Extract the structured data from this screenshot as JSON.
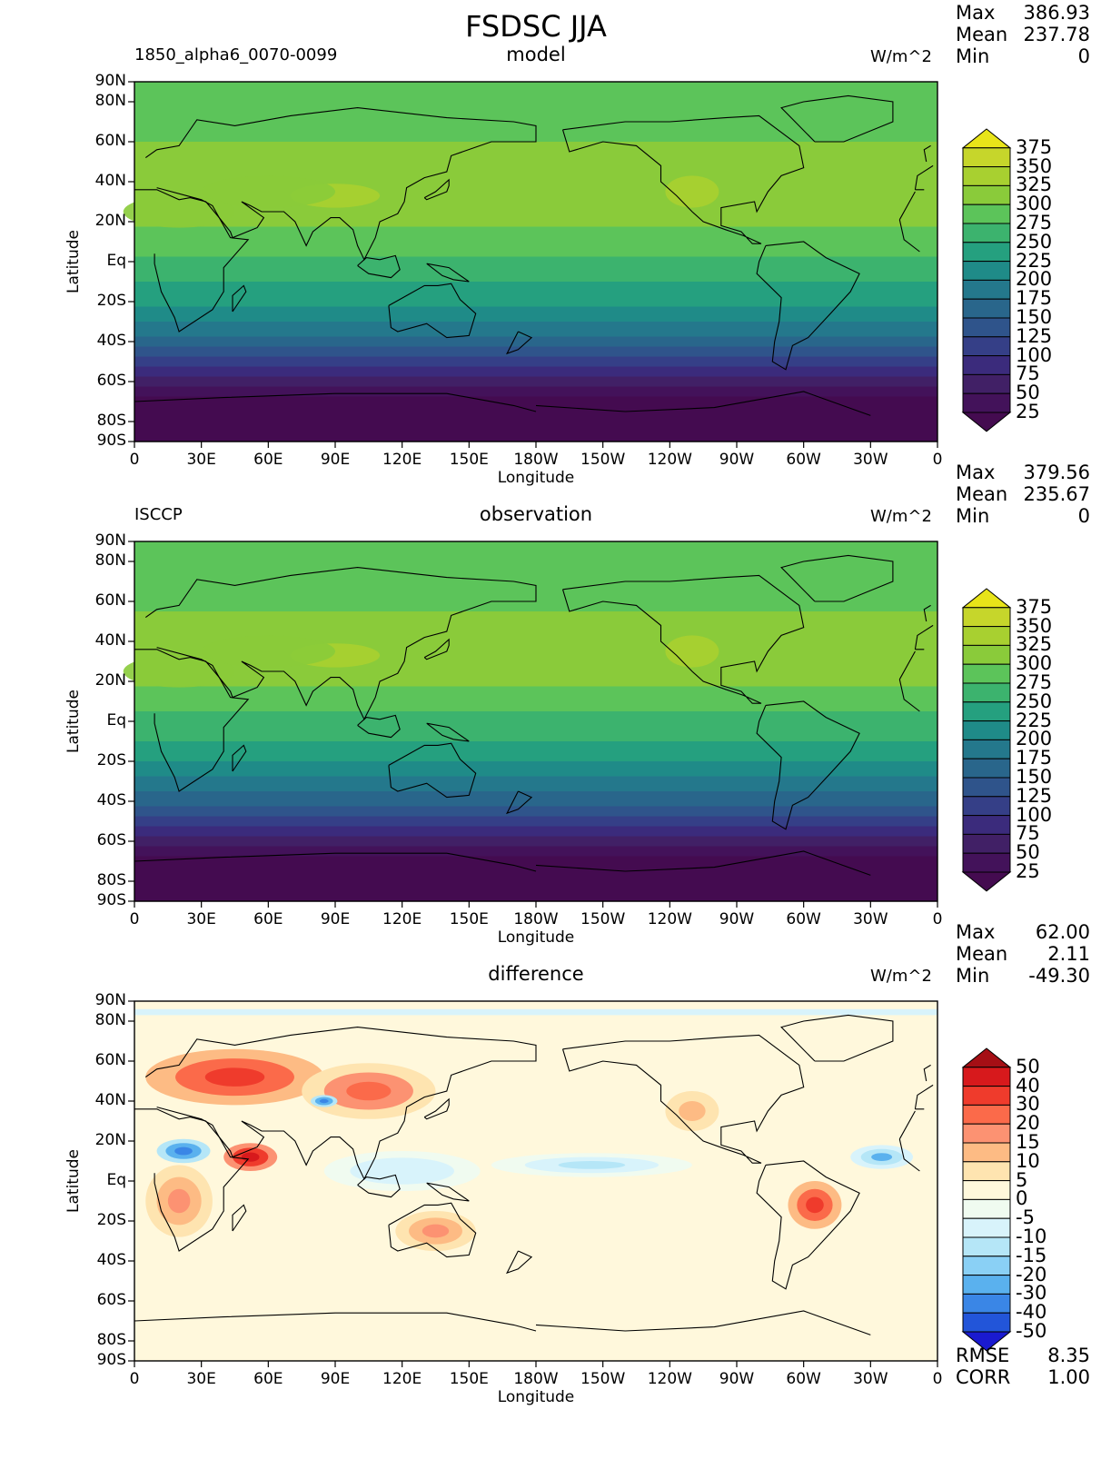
{
  "title": "FSDSC JJA",
  "chart_data": [
    {
      "type": "heatmap",
      "panel": "model",
      "left_label": "1850_alpha6_0070-0099",
      "center_label": "model",
      "units": "W/m^2",
      "xlabel": "Longitude",
      "ylabel": "Latitude",
      "stats": {
        "max_label": "Max",
        "max": "386.93",
        "mean_label": "Mean",
        "mean": "237.78",
        "min_label": "Min",
        "min": "0"
      },
      "xticks": [
        "0",
        "30E",
        "60E",
        "90E",
        "120E",
        "150E",
        "180W",
        "150W",
        "120W",
        "90W",
        "60W",
        "30W",
        "0"
      ],
      "yticks": [
        "90N",
        "80N",
        "60N",
        "40N",
        "20N",
        "Eq",
        "20S",
        "40S",
        "60S",
        "80S",
        "90S"
      ],
      "ytick_lats": [
        90,
        80,
        60,
        40,
        20,
        0,
        -20,
        -40,
        -60,
        -80,
        -90
      ],
      "levels": [
        "375",
        "350",
        "325",
        "300",
        "275",
        "250",
        "225",
        "200",
        "175",
        "150",
        "125",
        "100",
        "75",
        "50",
        "25"
      ],
      "level_colors": [
        "#e8e419",
        "#c6d62b",
        "#a8d030",
        "#8acb3a",
        "#5cc45a",
        "#3cb36e",
        "#25a07f",
        "#1f8b88",
        "#24788c",
        "#29668b",
        "#2f548b",
        "#353f87",
        "#3b2b7c",
        "#412066",
        "#43125a",
        "#440b50"
      ],
      "lat_profile": [
        [
          90,
          300
        ],
        [
          70,
          290
        ],
        [
          55,
          305
        ],
        [
          40,
          320
        ],
        [
          20,
          305
        ],
        [
          0,
          270
        ],
        [
          -20,
          230
        ],
        [
          -35,
          180
        ],
        [
          -45,
          140
        ],
        [
          -55,
          90
        ],
        [
          -62,
          50
        ],
        [
          -70,
          20
        ],
        [
          -90,
          10
        ]
      ]
    },
    {
      "type": "heatmap",
      "panel": "observation",
      "left_label": "ISCCP",
      "center_label": "observation",
      "units": "W/m^2",
      "xlabel": "Longitude",
      "ylabel": "Latitude",
      "stats": {
        "max_label": "Max",
        "max": "379.56",
        "mean_label": "Mean",
        "mean": "235.67",
        "min_label": "Min",
        "min": "0"
      },
      "xticks": [
        "0",
        "30E",
        "60E",
        "90E",
        "120E",
        "150E",
        "180W",
        "150W",
        "120W",
        "90W",
        "60W",
        "30W",
        "0"
      ],
      "yticks": [
        "90N",
        "80N",
        "60N",
        "40N",
        "20N",
        "Eq",
        "20S",
        "40S",
        "60S",
        "80S",
        "90S"
      ],
      "ytick_lats": [
        90,
        80,
        60,
        40,
        20,
        0,
        -20,
        -40,
        -60,
        -80,
        -90
      ],
      "levels": [
        "375",
        "350",
        "325",
        "300",
        "275",
        "250",
        "225",
        "200",
        "175",
        "150",
        "125",
        "100",
        "75",
        "50",
        "25"
      ],
      "level_colors": [
        "#e8e419",
        "#c6d62b",
        "#a8d030",
        "#8acb3a",
        "#5cc45a",
        "#3cb36e",
        "#25a07f",
        "#1f8b88",
        "#24788c",
        "#29668b",
        "#2f548b",
        "#353f87",
        "#3b2b7c",
        "#412066",
        "#43125a",
        "#440b50"
      ],
      "lat_profile": [
        [
          90,
          295
        ],
        [
          70,
          290
        ],
        [
          55,
          300
        ],
        [
          40,
          318
        ],
        [
          20,
          305
        ],
        [
          0,
          268
        ],
        [
          -20,
          228
        ],
        [
          -35,
          178
        ],
        [
          -45,
          138
        ],
        [
          -55,
          88
        ],
        [
          -62,
          48
        ],
        [
          -70,
          18
        ],
        [
          -90,
          8
        ]
      ]
    },
    {
      "type": "heatmap",
      "panel": "difference",
      "left_label": "",
      "center_label": "difference",
      "units": "W/m^2",
      "xlabel": "Longitude",
      "ylabel": "Latitude",
      "stats": {
        "max_label": "Max",
        "max": "62.00",
        "mean_label": "Mean",
        "mean": "2.11",
        "min_label": "Min",
        "min": "-49.30"
      },
      "extra_stats": {
        "rmse_label": "RMSE",
        "rmse": "8.35",
        "corr_label": "CORR",
        "corr": "1.00"
      },
      "xticks": [
        "0",
        "30E",
        "60E",
        "90E",
        "120E",
        "150E",
        "180W",
        "150W",
        "120W",
        "90W",
        "60W",
        "30W",
        "0"
      ],
      "yticks": [
        "90N",
        "80N",
        "60N",
        "40N",
        "20N",
        "Eq",
        "20S",
        "40S",
        "60S",
        "80S",
        "90S"
      ],
      "ytick_lats": [
        90,
        80,
        60,
        40,
        20,
        0,
        -20,
        -40,
        -60,
        -80,
        -90
      ],
      "levels": [
        "50",
        "40",
        "30",
        "20",
        "15",
        "10",
        "5",
        "0",
        "-5",
        "-10",
        "-15",
        "-20",
        "-30",
        "-40",
        "-50"
      ],
      "level_colors": [
        "#a50f15",
        "#d7191c",
        "#ef3b2c",
        "#fb6a4a",
        "#fc9272",
        "#fdbb84",
        "#fee4b0",
        "#fff8dc",
        "#f0fbf0",
        "#d8f3fb",
        "#b5e6f7",
        "#8ad0f5",
        "#5ab1ee",
        "#3a86e6",
        "#2255d9",
        "#1a1ad0"
      ],
      "anomalies": [
        {
          "lon": 45,
          "lat": 52,
          "val": 30,
          "rlon": 40,
          "rlat": 14
        },
        {
          "lon": 105,
          "lat": 45,
          "val": 25,
          "rlon": 30,
          "rlat": 14
        },
        {
          "lon": 52,
          "lat": 12,
          "val": 45,
          "rlon": 12,
          "rlat": 7
        },
        {
          "lon": 20,
          "lat": -10,
          "val": 15,
          "rlon": 15,
          "rlat": 18
        },
        {
          "lon": 135,
          "lat": -25,
          "val": 15,
          "rlon": 18,
          "rlat": 10
        },
        {
          "lon": -55,
          "lat": -12,
          "val": 30,
          "rlon": 12,
          "rlat": 12
        },
        {
          "lon": -110,
          "lat": 35,
          "val": 10,
          "rlon": 18,
          "rlat": 15
        },
        {
          "lon": 22,
          "lat": 15,
          "val": -35,
          "rlon": 12,
          "rlat": 6
        },
        {
          "lon": 85,
          "lat": 40,
          "val": -40,
          "rlon": 6,
          "rlat": 3
        },
        {
          "lon": -25,
          "lat": 12,
          "val": -22,
          "rlon": 14,
          "rlat": 6
        },
        {
          "lon": -155,
          "lat": 8,
          "val": -12,
          "rlon": 45,
          "rlat": 6
        },
        {
          "lon": 120,
          "lat": 5,
          "val": -8,
          "rlon": 35,
          "rlat": 10
        }
      ]
    }
  ]
}
